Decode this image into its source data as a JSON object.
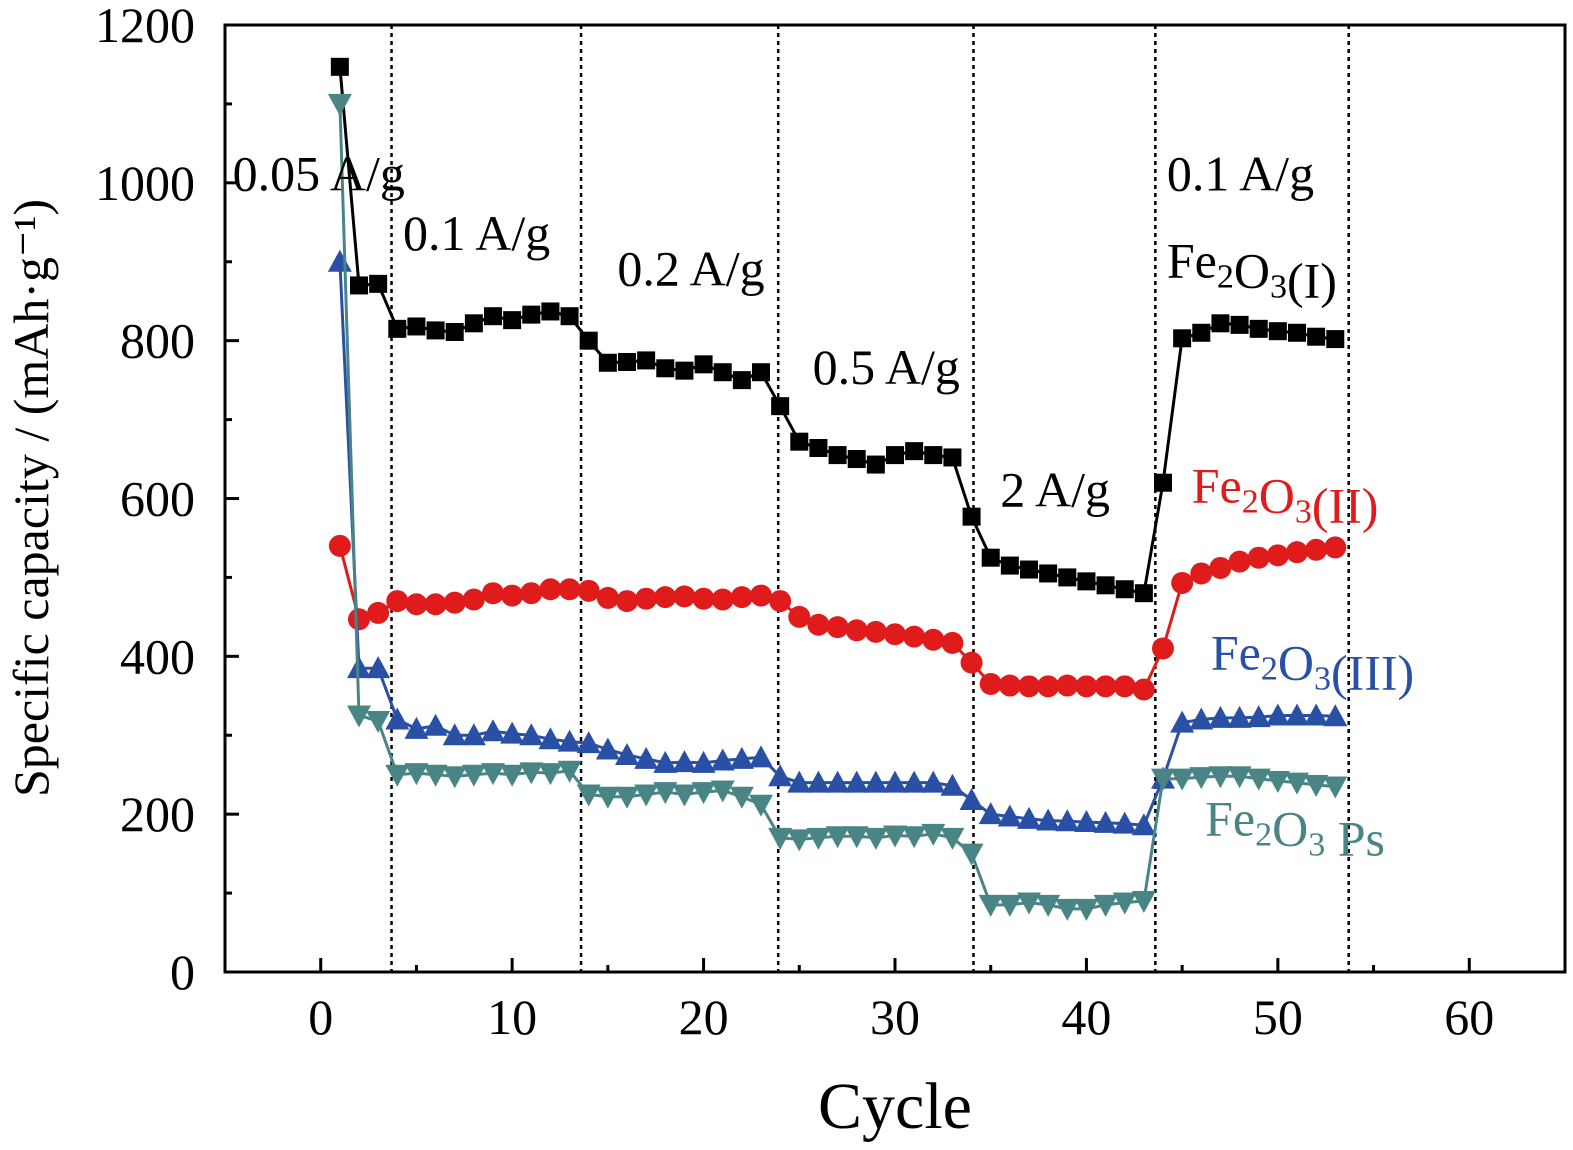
{
  "chart_data": {
    "type": "line",
    "title": "",
    "xlabel": "Cycle",
    "ylabel": "Specific capacity / (mAh·g⁻¹)",
    "xlim": [
      -5,
      65
    ],
    "ylim": [
      0,
      1200
    ],
    "xticks": [
      0,
      10,
      20,
      30,
      40,
      50,
      60
    ],
    "yticks": [
      0,
      200,
      400,
      600,
      800,
      1000,
      1200
    ],
    "grid": false,
    "legend": "none (series labels placed inside plot, right side)",
    "segment_boundaries": [
      3.7,
      13.6,
      23.9,
      34.1,
      43.6,
      53.7
    ],
    "rate_annotations": [
      {
        "text": "0.05 A/g",
        "x": -4.6,
        "y": 990
      },
      {
        "text": "0.1 A/g",
        "x": 4.3,
        "y": 915
      },
      {
        "text": "0.2 A/g",
        "x": 15.5,
        "y": 870
      },
      {
        "text": "0.5 A/g",
        "x": 25.7,
        "y": 745
      },
      {
        "text": "2 A/g",
        "x": 35.5,
        "y": 590
      },
      {
        "text": "0.1 A/g",
        "x": 44.2,
        "y": 990
      }
    ],
    "series": [
      {
        "name": "Fe2O3(I)",
        "label_parts": [
          [
            "Fe",
            ""
          ],
          [
            "2",
            "sub"
          ],
          [
            "O",
            ""
          ],
          [
            "3",
            "sub"
          ],
          [
            "(I)",
            ""
          ]
        ],
        "label_pos": {
          "x": 44.2,
          "y": 880
        },
        "color": "#000000",
        "label_color": "#000000",
        "marker": "square",
        "x": [
          1,
          2,
          3,
          4,
          5,
          6,
          7,
          8,
          9,
          10,
          11,
          12,
          13,
          14,
          15,
          16,
          17,
          18,
          19,
          20,
          21,
          22,
          23,
          24,
          25,
          26,
          27,
          28,
          29,
          30,
          31,
          32,
          33,
          34,
          35,
          36,
          37,
          38,
          39,
          40,
          41,
          42,
          43,
          44,
          45,
          46,
          47,
          48,
          49,
          50,
          51,
          52,
          53
        ],
        "values": [
          1147,
          870,
          872,
          815,
          818,
          813,
          811,
          822,
          831,
          826,
          833,
          837,
          831,
          800,
          772,
          773,
          775,
          765,
          762,
          770,
          760,
          750,
          760,
          717,
          672,
          664,
          655,
          650,
          643,
          655,
          660,
          655,
          652,
          577,
          525,
          515,
          510,
          505,
          500,
          495,
          490,
          485,
          480,
          620,
          803,
          810,
          822,
          820,
          815,
          812,
          810,
          805,
          802
        ]
      },
      {
        "name": "Fe2O3(II)",
        "label_parts": [
          [
            "Fe",
            ""
          ],
          [
            "2",
            "sub"
          ],
          [
            "O",
            ""
          ],
          [
            "3",
            "sub"
          ],
          [
            "(II)",
            ""
          ]
        ],
        "label_pos": {
          "x": 45.5,
          "y": 595
        },
        "color": "#e01b1b",
        "label_color": "#e01b1b",
        "marker": "circle",
        "x": [
          1,
          2,
          3,
          4,
          5,
          6,
          7,
          8,
          9,
          10,
          11,
          12,
          13,
          14,
          15,
          16,
          17,
          18,
          19,
          20,
          21,
          22,
          23,
          24,
          25,
          26,
          27,
          28,
          29,
          30,
          31,
          32,
          33,
          34,
          35,
          36,
          37,
          38,
          39,
          40,
          41,
          42,
          43,
          44,
          45,
          46,
          47,
          48,
          49,
          50,
          51,
          52,
          53
        ],
        "values": [
          540,
          447,
          455,
          470,
          466,
          466,
          468,
          472,
          480,
          477,
          480,
          485,
          485,
          483,
          474,
          470,
          473,
          475,
          476,
          473,
          472,
          475,
          477,
          470,
          450,
          440,
          437,
          433,
          431,
          428,
          425,
          421,
          417,
          392,
          365,
          363,
          362,
          362,
          363,
          362,
          362,
          362,
          358,
          410,
          493,
          505,
          512,
          520,
          525,
          528,
          532,
          535,
          538
        ]
      },
      {
        "name": "Fe2O3(III)",
        "label_parts": [
          [
            "Fe",
            ""
          ],
          [
            "2",
            "sub"
          ],
          [
            "O",
            ""
          ],
          [
            "3",
            "sub"
          ],
          [
            "(III)",
            ""
          ]
        ],
        "label_pos": {
          "x": 46.5,
          "y": 383
        },
        "color": "#2a50a6",
        "label_color": "#2a50a6",
        "marker": "triangle-up",
        "x": [
          1,
          2,
          3,
          4,
          5,
          6,
          7,
          8,
          9,
          10,
          11,
          12,
          13,
          14,
          15,
          16,
          17,
          18,
          19,
          20,
          21,
          22,
          23,
          24,
          25,
          26,
          27,
          28,
          29,
          30,
          31,
          32,
          33,
          34,
          35,
          36,
          37,
          38,
          39,
          40,
          41,
          42,
          43,
          44,
          45,
          46,
          47,
          48,
          49,
          50,
          51,
          52,
          53
        ],
        "values": [
          900,
          385,
          385,
          320,
          308,
          312,
          300,
          300,
          305,
          302,
          300,
          295,
          292,
          290,
          282,
          275,
          270,
          265,
          266,
          265,
          268,
          270,
          272,
          248,
          240,
          240,
          240,
          240,
          240,
          240,
          240,
          240,
          236,
          218,
          200,
          197,
          194,
          192,
          191,
          190,
          189,
          188,
          186,
          245,
          316,
          320,
          322,
          322,
          323,
          325,
          325,
          325,
          324
        ]
      },
      {
        "name": "Fe2O3 Ps",
        "label_parts": [
          [
            "Fe",
            ""
          ],
          [
            "2",
            "sub"
          ],
          [
            "O",
            ""
          ],
          [
            "3",
            "sub"
          ],
          [
            " Ps",
            ""
          ]
        ],
        "label_pos": {
          "x": 46.2,
          "y": 173
        },
        "color": "#4a8585",
        "label_color": "#4a8585",
        "marker": "triangle-down",
        "x": [
          1,
          2,
          3,
          4,
          5,
          6,
          7,
          8,
          9,
          10,
          11,
          12,
          13,
          14,
          15,
          16,
          17,
          18,
          19,
          20,
          21,
          22,
          23,
          24,
          25,
          26,
          27,
          28,
          29,
          30,
          31,
          32,
          33,
          34,
          35,
          36,
          37,
          38,
          39,
          40,
          41,
          42,
          43,
          44,
          45,
          46,
          47,
          48,
          49,
          50,
          51,
          52,
          53
        ],
        "values": [
          1100,
          325,
          318,
          250,
          252,
          250,
          248,
          250,
          252,
          250,
          253,
          252,
          255,
          225,
          222,
          222,
          225,
          228,
          225,
          228,
          230,
          222,
          212,
          170,
          168,
          170,
          172,
          172,
          170,
          173,
          172,
          175,
          170,
          150,
          85,
          85,
          88,
          85,
          80,
          80,
          85,
          88,
          90,
          245,
          245,
          247,
          248,
          248,
          245,
          242,
          240,
          237,
          235
        ]
      }
    ]
  }
}
